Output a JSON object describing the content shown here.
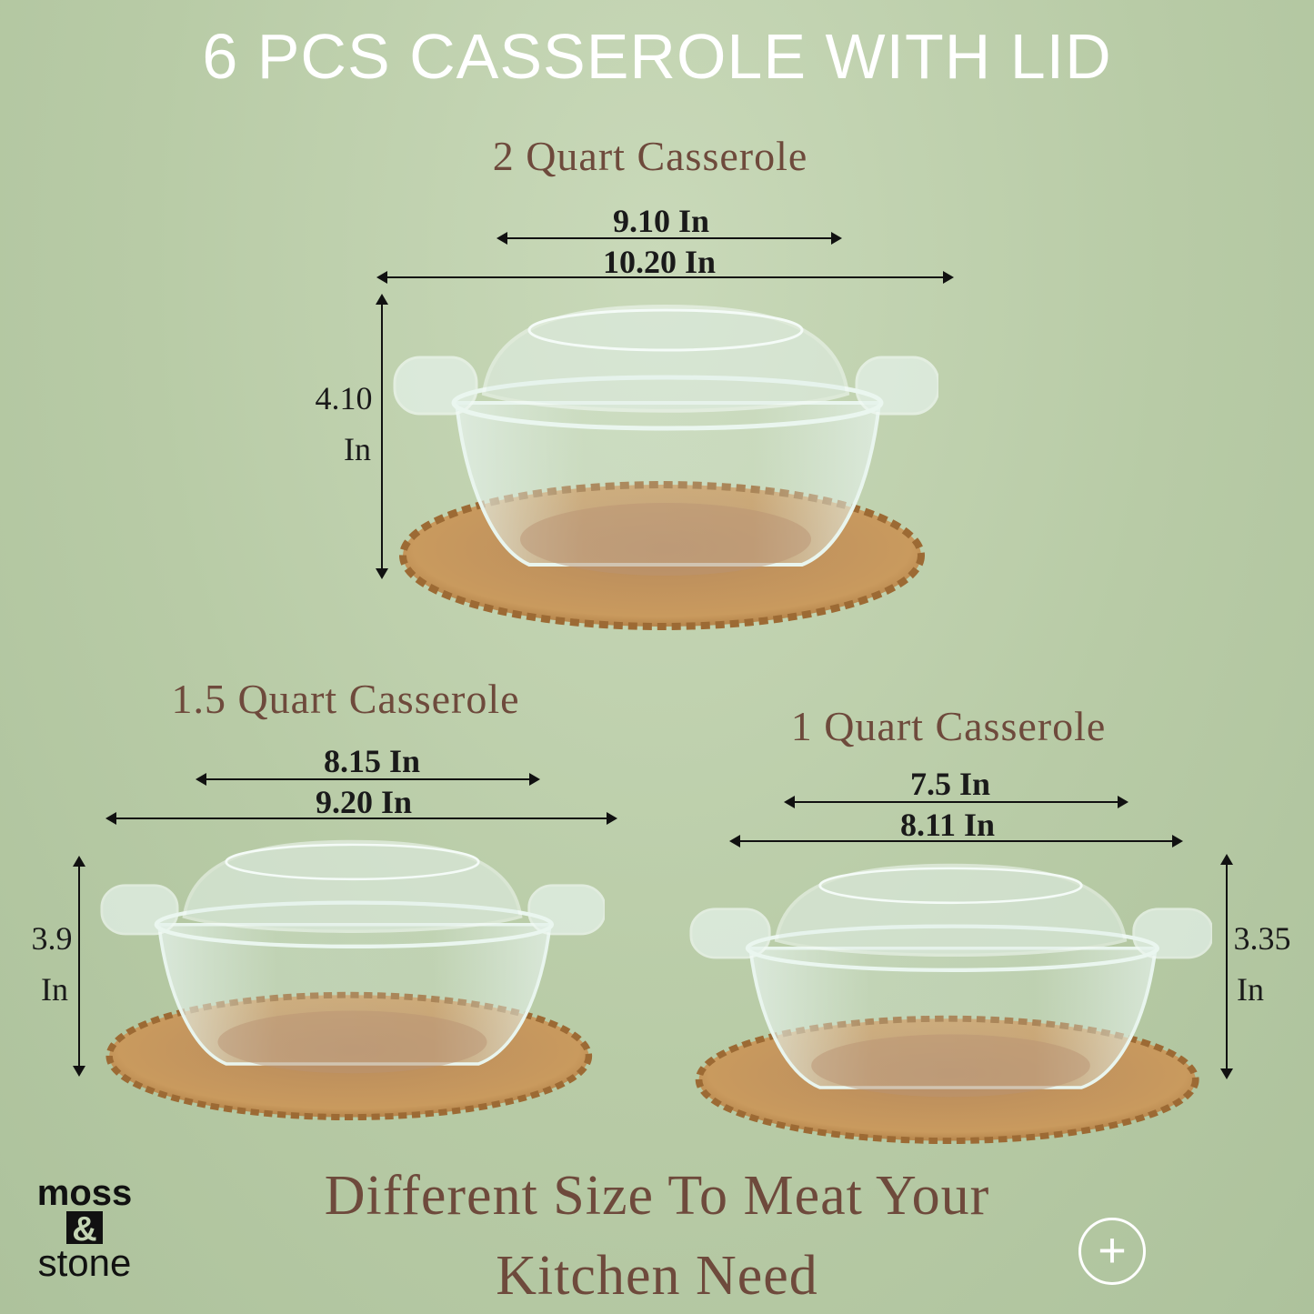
{
  "title": "6 PCS CASSEROLE WITH LID",
  "products": [
    {
      "name": "2 Quart Casserole",
      "inner_width": "9.10 In",
      "outer_width": "10.20 In",
      "height_value": "4.10",
      "height_unit": "In"
    },
    {
      "name": "1.5 Quart Casserole",
      "inner_width": "8.15 In",
      "outer_width": "9.20 In",
      "height_value": "3.9",
      "height_unit": "In"
    },
    {
      "name": "1 Quart Casserole",
      "inner_width": "7.5 In",
      "outer_width": "8.11 In",
      "height_value": "3.35",
      "height_unit": "In"
    }
  ],
  "tagline": {
    "line1": "Different Size To Meat Your",
    "line2": "Kitchen Need"
  },
  "logo": {
    "top": "moss",
    "middle": "&",
    "bottom": "stone"
  },
  "zoom_button": {
    "icon": "plus-icon",
    "label": "+"
  },
  "colors": {
    "background": "#b8cba6",
    "heading": "#6e4a3c",
    "title": "#ffffff",
    "mat": "#c99a5e"
  }
}
